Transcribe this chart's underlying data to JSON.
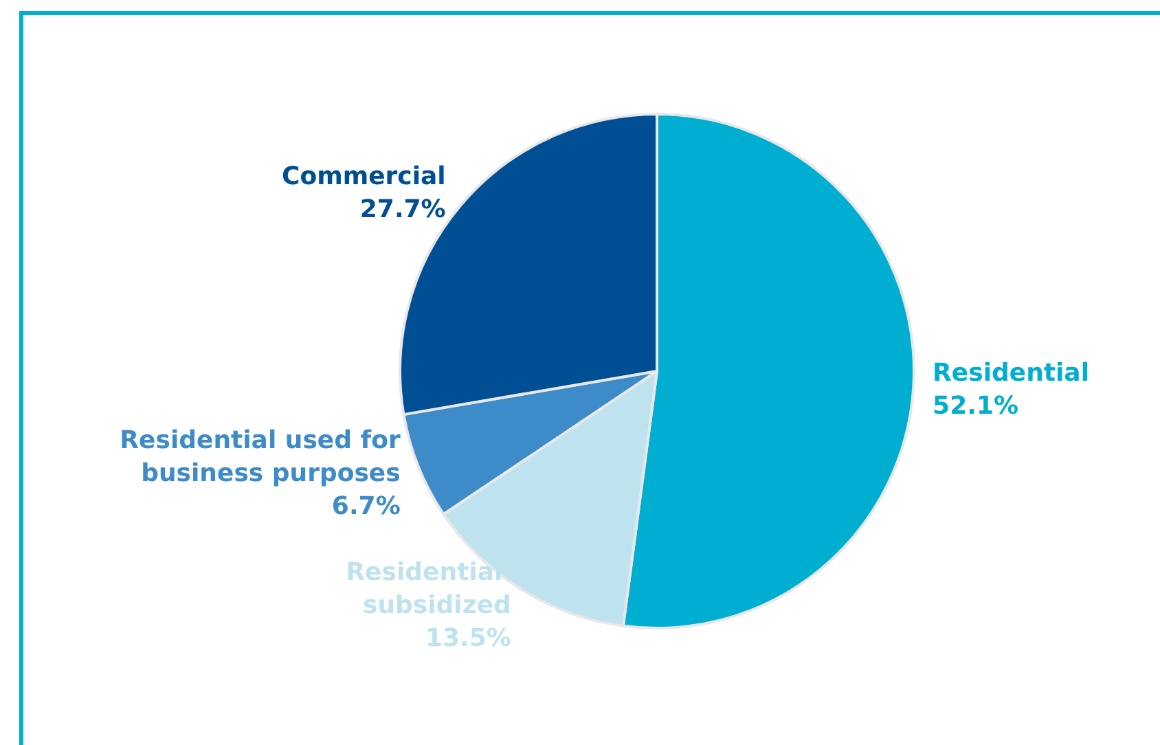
{
  "chart_data": {
    "type": "pie",
    "categories": [
      "Residential",
      "Residential subsidized",
      "Residential used for business purposes",
      "Commercial"
    ],
    "values": [
      52.1,
      13.5,
      6.7,
      27.7
    ],
    "colors": [
      "#00aed1",
      "#bfe3ee",
      "#3d8bc9",
      "#004f94"
    ],
    "value_labels": [
      "52.1%",
      "13.5%",
      "6.7%",
      "27.7%"
    ],
    "legend": false
  }
}
